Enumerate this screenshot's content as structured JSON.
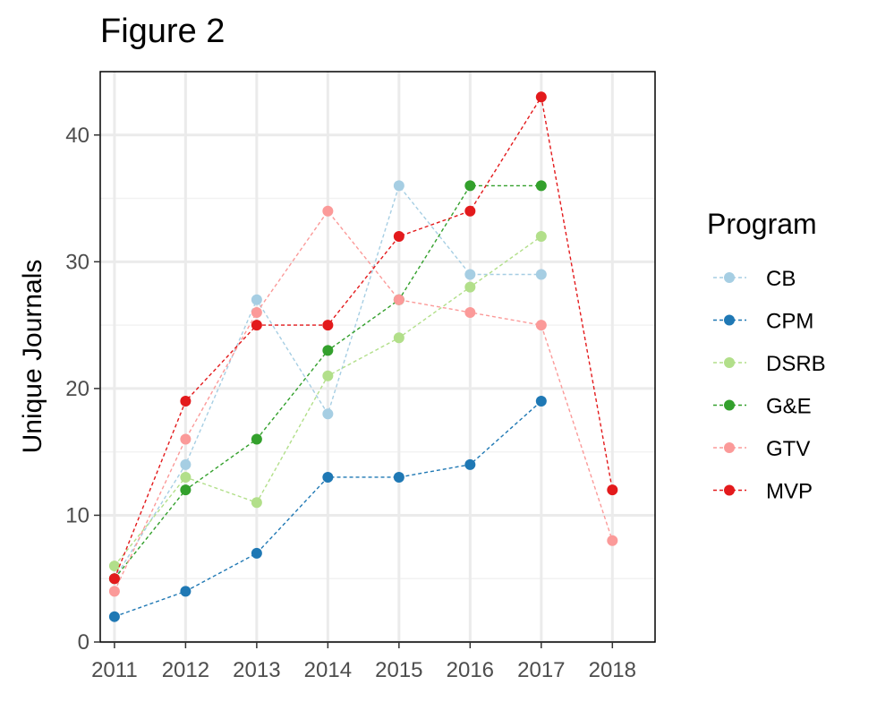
{
  "figure_title": "Figure 2",
  "chart_data": {
    "type": "line",
    "title": "Figure 2",
    "xlabel": "",
    "ylabel": "Unique Journals",
    "x": [
      2011,
      2012,
      2013,
      2014,
      2015,
      2016,
      2017,
      2018
    ],
    "x_tick_labels": [
      "2011",
      "2012",
      "2013",
      "2014",
      "2015",
      "2016",
      "2017",
      "2018"
    ],
    "y_ticks": [
      0,
      10,
      20,
      30,
      40
    ],
    "y_tick_labels": [
      "0",
      "10",
      "20",
      "30",
      "40"
    ],
    "xlim": [
      2010.8,
      2018.6
    ],
    "ylim": [
      0,
      45
    ],
    "grid": true,
    "line_style": "dashed",
    "legend_title": "Program",
    "legend_position": "right",
    "series": [
      {
        "name": "CB",
        "color": "#a6cee3",
        "x": [
          2011,
          2012,
          2013,
          2014,
          2015,
          2016,
          2017
        ],
        "values": [
          5,
          14,
          27,
          18,
          36,
          29,
          29
        ]
      },
      {
        "name": "CPM",
        "color": "#1f78b4",
        "x": [
          2011,
          2012,
          2013,
          2014,
          2015,
          2016,
          2017
        ],
        "values": [
          2,
          4,
          7,
          13,
          13,
          14,
          19
        ]
      },
      {
        "name": "DSRB",
        "color": "#b2df8a",
        "x": [
          2011,
          2012,
          2013,
          2014,
          2015,
          2016,
          2017
        ],
        "values": [
          6,
          13,
          11,
          21,
          24,
          28,
          32
        ]
      },
      {
        "name": "G&E",
        "color": "#33a02c",
        "x": [
          2011,
          2012,
          2013,
          2014,
          2015,
          2016,
          2017
        ],
        "values": [
          5,
          12,
          16,
          23,
          27,
          36,
          36
        ]
      },
      {
        "name": "GTV",
        "color": "#fb9a99",
        "x": [
          2011,
          2012,
          2013,
          2014,
          2015,
          2016,
          2017,
          2018
        ],
        "values": [
          4,
          16,
          26,
          34,
          27,
          26,
          25,
          8
        ]
      },
      {
        "name": "MVP",
        "color": "#e31a1c",
        "x": [
          2011,
          2012,
          2013,
          2014,
          2015,
          2016,
          2017,
          2018
        ],
        "values": [
          5,
          19,
          25,
          25,
          32,
          34,
          43,
          12
        ]
      }
    ]
  }
}
